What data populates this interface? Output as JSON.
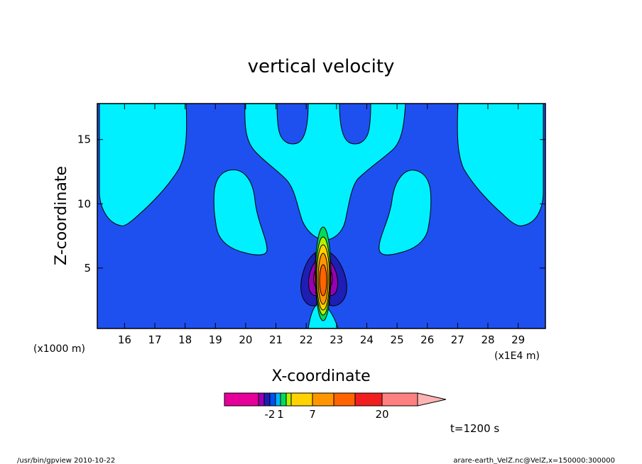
{
  "chart_data": {
    "type": "heatmap",
    "title": "vertical velocity",
    "xlabel": "X-coordinate",
    "ylabel": "Z-coordinate",
    "x_unit_label": "(x1E4 m)",
    "y_unit_label": "(x1000 m)",
    "xlim": [
      15.1,
      29.9
    ],
    "ylim": [
      0.3,
      17.8
    ],
    "x_ticks": [
      16,
      17,
      18,
      19,
      20,
      21,
      22,
      23,
      24,
      25,
      26,
      27,
      28,
      29
    ],
    "y_ticks": [
      5,
      10,
      15
    ],
    "colorbar": {
      "segments": [
        {
          "color": "#e60099"
        },
        {
          "color": "#9600b4"
        },
        {
          "color": "#1e1eb4"
        },
        {
          "color": "#0050f0"
        },
        {
          "color": "#00b4ff"
        },
        {
          "color": "#00dc5a"
        },
        {
          "color": "#b4f000"
        },
        {
          "color": "#ffd200"
        },
        {
          "color": "#ff9600"
        },
        {
          "color": "#ff6400"
        },
        {
          "color": "#f01e1e"
        },
        {
          "color": "#ff8080"
        },
        {
          "color": "#ffb4b4"
        }
      ],
      "tick_labels": [
        "-2",
        "1",
        "7",
        "20"
      ]
    },
    "background_level_color": "#1e50f0",
    "light_level_color": "#00f0ff",
    "annotation": "t=1200 s"
  },
  "footer": {
    "left": "/usr/bin/gpview   2010-10-22",
    "right": "arare-earth_VelZ.nc@VelZ,x=150000:300000"
  }
}
